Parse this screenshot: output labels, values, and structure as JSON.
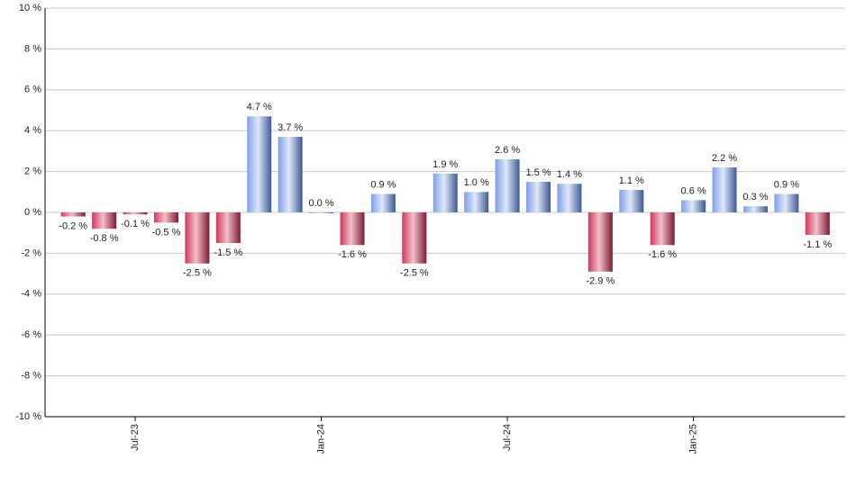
{
  "chart_data": {
    "type": "bar",
    "categories": [
      null,
      null,
      "Jul-23",
      null,
      null,
      null,
      null,
      null,
      "Jan-24",
      null,
      null,
      null,
      null,
      null,
      "Jul-24",
      null,
      null,
      null,
      null,
      null,
      "Jan-25",
      null,
      null,
      null,
      null
    ],
    "values": [
      -0.2,
      -0.8,
      -0.1,
      -0.5,
      -2.5,
      -1.5,
      4.7,
      3.7,
      0.0,
      -1.6,
      0.9,
      -2.5,
      1.9,
      1.0,
      2.6,
      1.5,
      1.4,
      -2.9,
      1.1,
      -1.6,
      0.6,
      2.2,
      0.3,
      0.9,
      -1.1
    ],
    "value_labels": [
      "-0.2 %",
      "-0.8 %",
      "-0.1 %",
      "-0.5 %",
      "-2.5 %",
      "-1.5 %",
      "4.7 %",
      "3.7 %",
      "0.0 %",
      "-1.6 %",
      "0.9 %",
      "-2.5 %",
      "1.9 %",
      "1.0 %",
      "2.6 %",
      "1.5 %",
      "1.4 %",
      "-2.9 %",
      "1.1 %",
      "-1.6 %",
      "0.6 %",
      "2.2 %",
      "0.3 %",
      "0.9 %",
      "-1.1 %"
    ],
    "colors": {
      "positive": "#7f9fe6",
      "negative": "#d0385a"
    },
    "ylim": [
      -10,
      10
    ],
    "yticks": [
      {
        "value": -10,
        "label": "-10 %"
      },
      {
        "value": -8,
        "label": "-8 %"
      },
      {
        "value": -6,
        "label": "-6 %"
      },
      {
        "value": -4,
        "label": "-4 %"
      },
      {
        "value": -2,
        "label": "-2 %"
      },
      {
        "value": 0,
        "label": "0 %"
      },
      {
        "value": 2,
        "label": "2 %"
      },
      {
        "value": 4,
        "label": "4 %"
      },
      {
        "value": 6,
        "label": "6 %"
      },
      {
        "value": 8,
        "label": "8 %"
      },
      {
        "value": 10,
        "label": "10 %"
      }
    ],
    "grid": true
  }
}
